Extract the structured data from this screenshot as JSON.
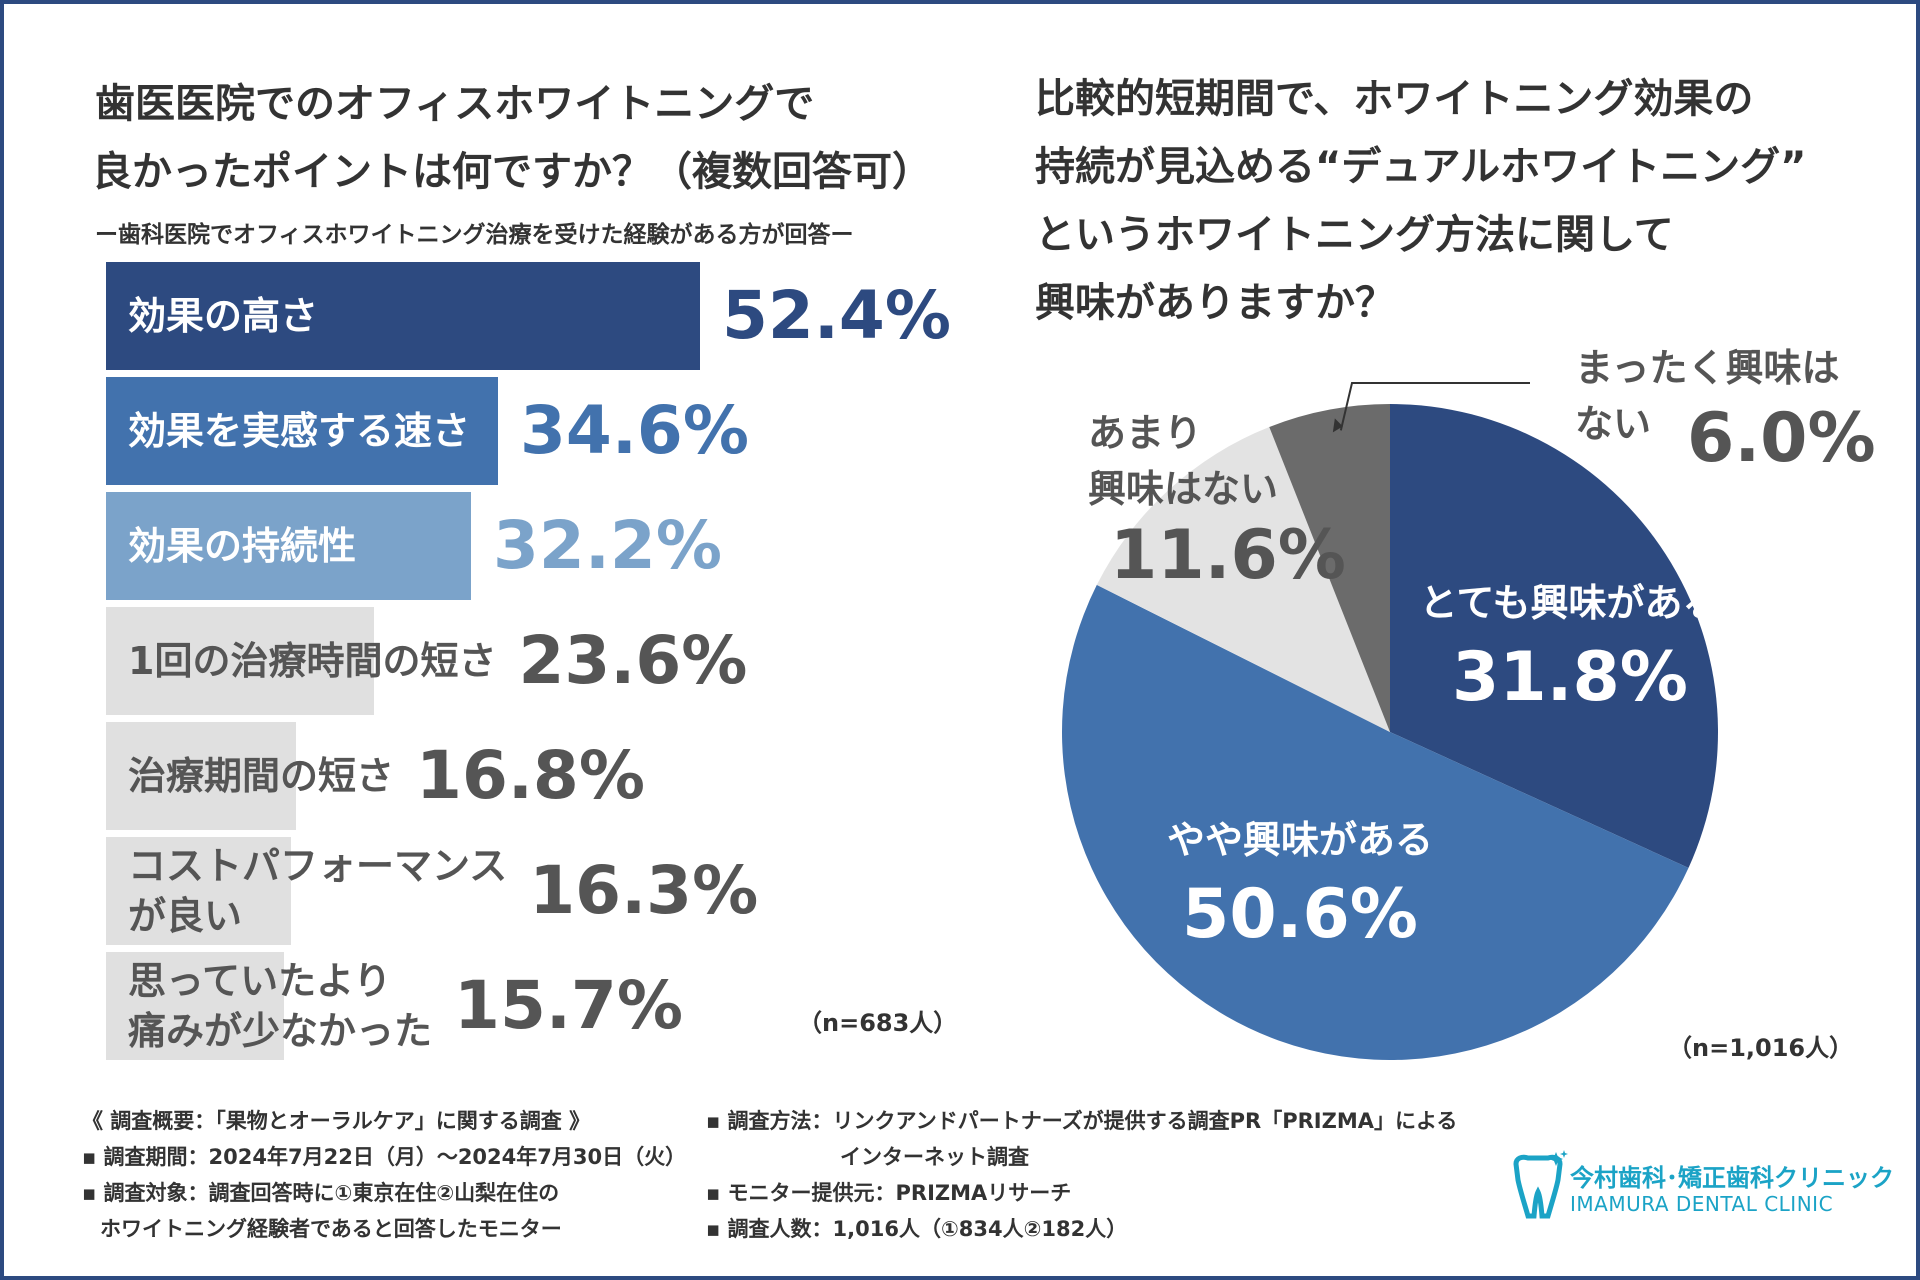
{
  "left": {
    "title_line1": "歯医医院でのオフィスホワイトニングで",
    "title_line2": "良かったポイントは何ですか？（複数回答可）",
    "subtitle": "ー歯科医院でオフィスホワイトニング治療を受けた経験がある方が回答ー",
    "sample": "（n=683人）"
  },
  "right": {
    "title_line1": "比較的短期間で、ホワイトニング効果の",
    "title_line2": "持続が見込める“デュアルホワイトニング”",
    "title_line3": "というホワイトニング方法に関して",
    "title_line4": "興味がありますか？",
    "sample": "（n=1,016人）"
  },
  "chart_data": [
    {
      "type": "bar",
      "orientation": "horizontal",
      "title": "歯医医院でのオフィスホワイトニングで良かったポイントは何ですか？（複数回答可）",
      "categories": [
        "効果の高さ",
        "効果を実感する速さ",
        "効果の持続性",
        "1回の治療時間の短さ",
        "治療期間の短さ",
        "コストパフォーマンスが良い",
        "思っていたより痛みが少なかった"
      ],
      "label_lines": [
        [
          "効果の高さ"
        ],
        [
          "効果を実感する速さ"
        ],
        [
          "効果の持続性"
        ],
        [
          "1回の治療時間の短さ"
        ],
        [
          "治療期間の短さ"
        ],
        [
          "コストパフォーマンス",
          "が良い"
        ],
        [
          "思っていたより",
          "痛みが少なかった"
        ]
      ],
      "values": [
        52.4,
        34.6,
        32.2,
        23.6,
        16.8,
        16.3,
        15.7
      ],
      "value_labels": [
        "52.4%",
        "34.6%",
        "32.2%",
        "23.6%",
        "16.8%",
        "16.3%",
        "15.7%"
      ],
      "bar_colors": [
        "#2d4a80",
        "#4272ad",
        "#7ba3ca",
        "#e0e0e0",
        "#e0e0e0",
        "#e0e0e0",
        "#e0e0e0"
      ],
      "label_colors": [
        "#ffffff",
        "#ffffff",
        "#ffffff",
        "#555555",
        "#555555",
        "#555555",
        "#555555"
      ],
      "value_colors": [
        "#2d4a80",
        "#4272ad",
        "#7ba3ca",
        "#555555",
        "#555555",
        "#555555",
        "#555555"
      ],
      "xlim": [
        0,
        60
      ],
      "n": "n=683人"
    },
    {
      "type": "pie",
      "title": "比較的短期間で、ホワイトニング効果の持続が見込める“デュアルホワイトニング”というホワイトニング方法に関して興味がありますか？",
      "labels": [
        "とても興味がある",
        "やや興味がある",
        "あまり興味はない",
        "まったく興味はない"
      ],
      "label_lines": [
        [
          "とても興味がある"
        ],
        [
          "やや興味がある"
        ],
        [
          "あまり",
          "興味はない"
        ],
        [
          "まったく興味は",
          "ない"
        ]
      ],
      "values": [
        31.8,
        50.6,
        11.6,
        6.0
      ],
      "value_labels": [
        "31.8%",
        "50.6%",
        "11.6%",
        "6.0%"
      ],
      "colors": [
        "#2d4a80",
        "#4272ad",
        "#e3e3e3",
        "#6b6b6b"
      ],
      "n": "n=1,016人"
    }
  ],
  "footer": {
    "left": [
      "《 調査概要：「果物とオーラルケア」に関する調査 》",
      "▪ 調査期間：2024年7月22日（月）～2024年7月30日（火）",
      "▪ 調査対象：調査回答時に①東京在住②山梨在住の",
      "ホワイトニング経験者であると回答したモニター"
    ],
    "right": [
      "▪ 調査方法：リンクアンドパートナーズが提供する調査PR「PRIZMA」による",
      "インターネット調査",
      "▪ モニター提供元：PRIZMAリサーチ",
      "▪ 調査人数：1,016人（①834人②182人）"
    ]
  },
  "logo": {
    "jp": "今村歯科･矯正歯科クリニック",
    "en": "IMAMURA DENTAL CLINIC",
    "color": "#1ba3c6"
  }
}
